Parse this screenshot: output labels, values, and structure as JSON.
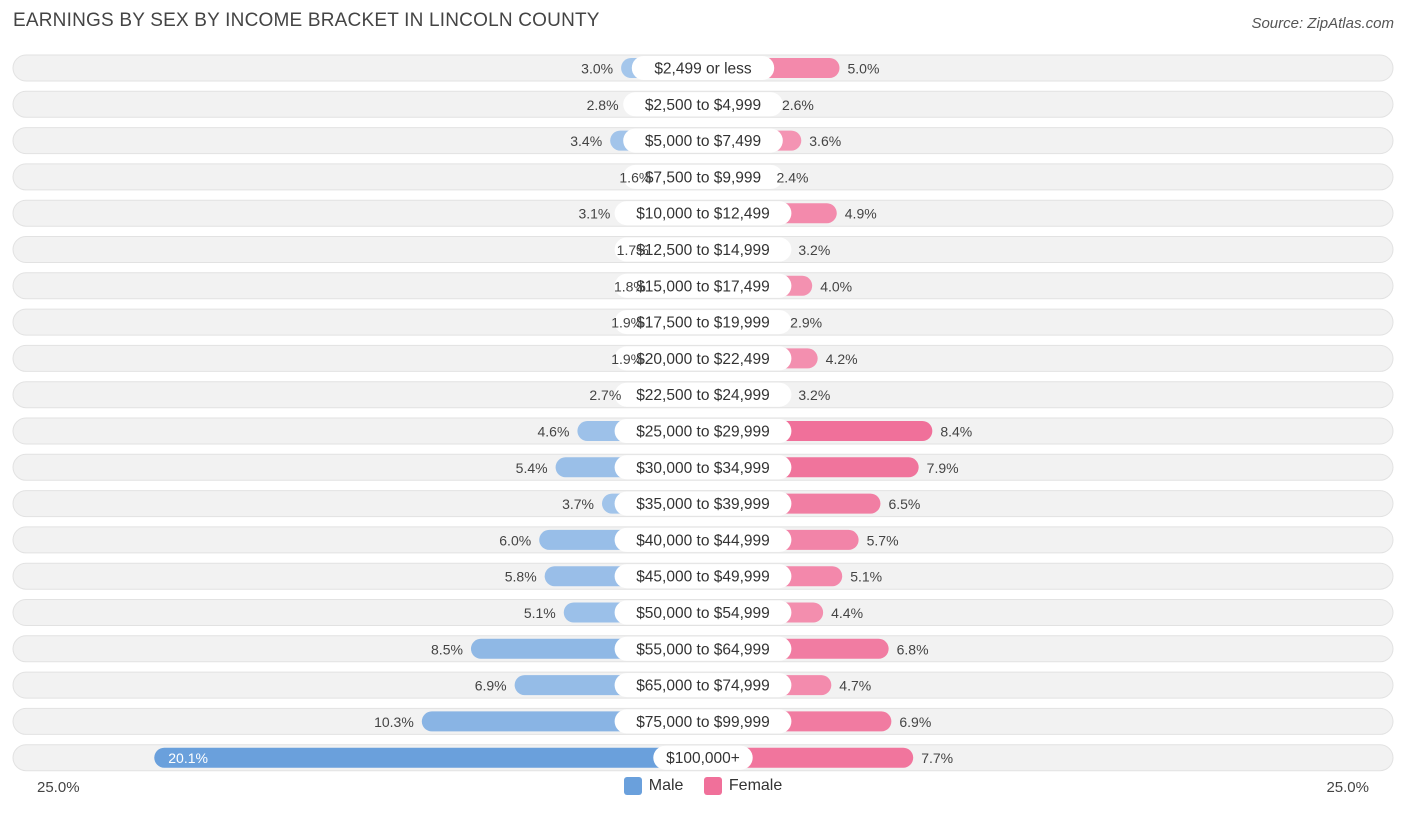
{
  "header": {
    "title": "EARNINGS BY SEX BY INCOME BRACKET IN LINCOLN COUNTY",
    "source": "Source: ZipAtlas.com"
  },
  "legend": {
    "male_label": "Male",
    "female_label": "Female",
    "male_color": "#6aa0dc",
    "female_color": "#f0709a"
  },
  "axis": {
    "left_label": "25.0%",
    "right_label": "25.0%"
  },
  "chart_data": {
    "type": "bar",
    "orientation": "horizontal-diverging",
    "title": "EARNINGS BY SEX BY INCOME BRACKET IN LINCOLN COUNTY",
    "xlim": [
      -25,
      25
    ],
    "categories": [
      "$2,499 or less",
      "$2,500 to $4,999",
      "$5,000 to $7,499",
      "$7,500 to $9,999",
      "$10,000 to $12,499",
      "$12,500 to $14,999",
      "$15,000 to $17,499",
      "$17,500 to $19,999",
      "$20,000 to $22,499",
      "$22,500 to $24,999",
      "$25,000 to $29,999",
      "$30,000 to $34,999",
      "$35,000 to $39,999",
      "$40,000 to $44,999",
      "$45,000 to $49,999",
      "$50,000 to $54,999",
      "$55,000 to $64,999",
      "$65,000 to $74,999",
      "$75,000 to $99,999",
      "$100,000+"
    ],
    "series": [
      {
        "name": "Male",
        "values": [
          3.0,
          2.8,
          3.4,
          1.6,
          3.1,
          1.7,
          1.8,
          1.9,
          1.9,
          2.7,
          4.6,
          5.4,
          3.7,
          6.0,
          5.8,
          5.1,
          8.5,
          6.9,
          10.3,
          20.1
        ]
      },
      {
        "name": "Female",
        "values": [
          5.0,
          2.6,
          3.6,
          2.4,
          4.9,
          3.2,
          4.0,
          2.9,
          4.2,
          3.2,
          8.4,
          7.9,
          6.5,
          5.7,
          5.1,
          4.4,
          6.8,
          4.7,
          6.9,
          7.7
        ]
      }
    ],
    "value_labels": {
      "male": [
        "3.0%",
        "2.8%",
        "3.4%",
        "1.6%",
        "3.1%",
        "1.7%",
        "1.8%",
        "1.9%",
        "1.9%",
        "2.7%",
        "4.6%",
        "5.4%",
        "3.7%",
        "6.0%",
        "5.8%",
        "5.1%",
        "8.5%",
        "6.9%",
        "10.3%",
        "20.1%"
      ],
      "female": [
        "5.0%",
        "2.6%",
        "3.6%",
        "2.4%",
        "4.9%",
        "3.2%",
        "4.0%",
        "2.9%",
        "4.2%",
        "3.2%",
        "8.4%",
        "7.9%",
        "6.5%",
        "5.7%",
        "5.1%",
        "4.4%",
        "6.8%",
        "4.7%",
        "6.9%",
        "7.7%"
      ]
    }
  }
}
